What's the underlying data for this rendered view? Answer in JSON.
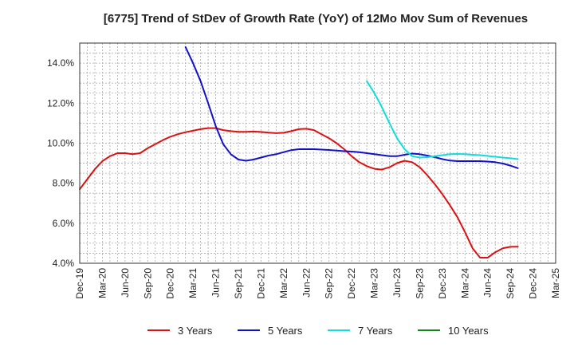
{
  "chart_data": {
    "type": "line",
    "title": "[6775]  Trend of StDev of Growth Rate (YoY) of 12Mo Mov Sum of Revenues",
    "xlabel": "",
    "ylabel": "",
    "ylim": [
      4.0,
      15.0
    ],
    "y_ticks": [
      4.0,
      6.0,
      8.0,
      10.0,
      12.0,
      14.0
    ],
    "y_tick_labels": [
      "4.0%",
      "6.0%",
      "8.0%",
      "10.0%",
      "12.0%",
      "14.0%"
    ],
    "x_range": [
      0,
      63
    ],
    "x_ticks": [
      0,
      3,
      6,
      9,
      12,
      15,
      18,
      21,
      24,
      27,
      30,
      33,
      36,
      39,
      42,
      45,
      48,
      51,
      54,
      57,
      60,
      63
    ],
    "x_tick_labels": [
      "Dec-19",
      "Mar-20",
      "Jun-20",
      "Sep-20",
      "Dec-20",
      "Mar-21",
      "Jun-21",
      "Sep-21",
      "Dec-21",
      "Mar-22",
      "Jun-22",
      "Sep-22",
      "Dec-22",
      "Mar-23",
      "Jun-23",
      "Sep-23",
      "Dec-23",
      "Mar-24",
      "Jun-24",
      "Sep-24",
      "Dec-24",
      "Mar-25"
    ],
    "grid": true,
    "legend_position": "bottom",
    "series": [
      {
        "name": "3 Years",
        "color": "#dd1111",
        "x_start": 0,
        "values": [
          7.7,
          8.2,
          8.7,
          9.1,
          9.35,
          9.5,
          9.5,
          9.45,
          9.5,
          9.75,
          9.95,
          10.15,
          10.32,
          10.45,
          10.55,
          10.62,
          10.7,
          10.75,
          10.75,
          10.65,
          10.6,
          10.57,
          10.57,
          10.58,
          10.56,
          10.53,
          10.5,
          10.52,
          10.6,
          10.7,
          10.72,
          10.65,
          10.45,
          10.25,
          10.0,
          9.7,
          9.35,
          9.05,
          8.85,
          8.72,
          8.68,
          8.8,
          9.0,
          9.12,
          9.05,
          8.8,
          8.4,
          7.95,
          7.45,
          6.9,
          6.3,
          5.55,
          4.75,
          4.28,
          4.28,
          4.55,
          4.75,
          4.82,
          4.83
        ]
      },
      {
        "name": "5 Years",
        "color": "#1111cc",
        "x_start": 14,
        "values": [
          14.8,
          14.0,
          13.1,
          12.0,
          10.85,
          9.95,
          9.45,
          9.18,
          9.12,
          9.18,
          9.28,
          9.38,
          9.45,
          9.55,
          9.65,
          9.7,
          9.7,
          9.7,
          9.68,
          9.66,
          9.63,
          9.6,
          9.58,
          9.55,
          9.5,
          9.45,
          9.4,
          9.35,
          9.35,
          9.42,
          9.48,
          9.45,
          9.38,
          9.3,
          9.2,
          9.13,
          9.1,
          9.1,
          9.1,
          9.1,
          9.08,
          9.05,
          8.98,
          8.88,
          8.75
        ]
      },
      {
        "name": "7 Years",
        "color": "#11dddd",
        "x_start": 38,
        "values": [
          13.1,
          12.5,
          11.8,
          11.0,
          10.25,
          9.7,
          9.35,
          9.28,
          9.3,
          9.35,
          9.4,
          9.45,
          9.46,
          9.45,
          9.42,
          9.4,
          9.36,
          9.32,
          9.28,
          9.25,
          9.2
        ]
      },
      {
        "name": "10 Years",
        "color": "#118811",
        "x_start": 0,
        "values": []
      }
    ]
  }
}
